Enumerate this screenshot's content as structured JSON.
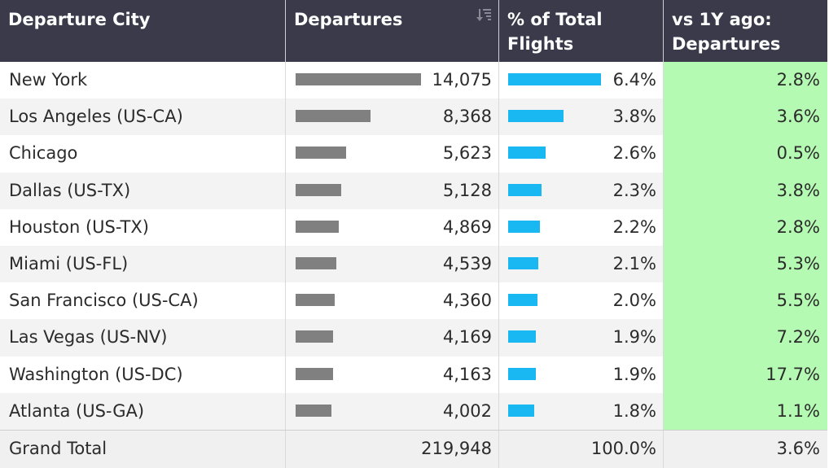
{
  "headers": {
    "city": "Departure City",
    "departures": "Departures",
    "pct": "% of Total\nFlights",
    "yoy": "vs 1Y ago:\nDepartures"
  },
  "colors": {
    "header_bg": "#3a3a4a",
    "departures_bar": "#808080",
    "pct_bar": "#1ab8f3",
    "yoy_bg": "#b5fab2"
  },
  "chart_data": {
    "type": "table",
    "columns": [
      "Departure City",
      "Departures",
      "% of Total Flights",
      "vs 1Y ago: Departures"
    ],
    "rows": [
      {
        "city": "New York",
        "departures": 14075,
        "departures_label": "14,075",
        "pct": 6.4,
        "pct_label": "6.4%",
        "yoy_label": "2.8%"
      },
      {
        "city": "Los Angeles (US-CA)",
        "departures": 8368,
        "departures_label": "8,368",
        "pct": 3.8,
        "pct_label": "3.8%",
        "yoy_label": "3.6%"
      },
      {
        "city": "Chicago",
        "departures": 5623,
        "departures_label": "5,623",
        "pct": 2.6,
        "pct_label": "2.6%",
        "yoy_label": "0.5%"
      },
      {
        "city": "Dallas (US-TX)",
        "departures": 5128,
        "departures_label": "5,128",
        "pct": 2.3,
        "pct_label": "2.3%",
        "yoy_label": "3.8%"
      },
      {
        "city": "Houston (US-TX)",
        "departures": 4869,
        "departures_label": "4,869",
        "pct": 2.2,
        "pct_label": "2.2%",
        "yoy_label": "2.8%"
      },
      {
        "city": "Miami (US-FL)",
        "departures": 4539,
        "departures_label": "4,539",
        "pct": 2.1,
        "pct_label": "2.1%",
        "yoy_label": "5.3%"
      },
      {
        "city": "San Francisco (US-CA)",
        "departures": 4360,
        "departures_label": "4,360",
        "pct": 2.0,
        "pct_label": "2.0%",
        "yoy_label": "5.5%"
      },
      {
        "city": "Las Vegas (US-NV)",
        "departures": 4169,
        "departures_label": "4,169",
        "pct": 1.9,
        "pct_label": "1.9%",
        "yoy_label": "7.2%"
      },
      {
        "city": "Washington (US-DC)",
        "departures": 4163,
        "departures_label": "4,163",
        "pct": 1.9,
        "pct_label": "1.9%",
        "yoy_label": "17.7%"
      },
      {
        "city": "Atlanta (US-GA)",
        "departures": 4002,
        "departures_label": "4,002",
        "pct": 1.8,
        "pct_label": "1.8%",
        "yoy_label": "1.1%"
      }
    ],
    "total": {
      "label": "Grand Total",
      "departures_label": "219,948",
      "pct_label": "100.0%",
      "yoy_label": "3.6%"
    }
  }
}
